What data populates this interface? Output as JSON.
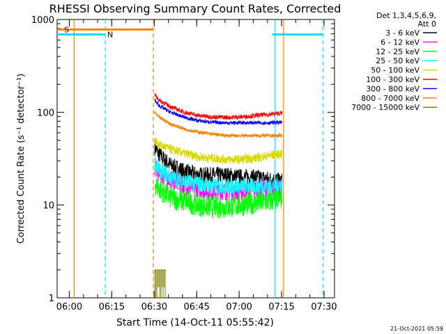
{
  "chart_data": {
    "type": "line",
    "title": "RHESSI Observing Summary Count Rates, Corrected",
    "xlabel": "Start Time (14-Oct-11 05:55:42)",
    "ylabel": "Corrected Count Rate (s⁻¹ detector⁻¹)",
    "x_ticks": [
      "06:00",
      "06:15",
      "06:30",
      "06:45",
      "07:00",
      "07:15",
      "07:30"
    ],
    "x_tick_minutes": [
      4.3,
      19.3,
      34.3,
      49.3,
      64.3,
      79.3,
      94.3
    ],
    "xlim_minutes": [
      0,
      98
    ],
    "y_scale": "log",
    "ylim": [
      1,
      1000
    ],
    "y_ticks": [
      "1",
      "10",
      "100",
      "1000"
    ],
    "grid": false,
    "legend_position": "top-right",
    "legend_header": [
      "Det 1,3,4,5,6,9,",
      "Att 0"
    ],
    "timestamp": "21-Oct-2021 05:59",
    "flags": [
      {
        "label": "S",
        "start": 0,
        "end": 34,
        "level": 780,
        "color": "#ff8000"
      },
      {
        "label": "N",
        "start": 0,
        "end": 17,
        "level": 690,
        "color": "#00e0ff"
      }
    ],
    "flag_end_right": {
      "start": 76,
      "end": 94,
      "level": 690,
      "color": "#00e0ff"
    },
    "vlines_solid": [
      {
        "x": 6,
        "color": "#ff8000"
      },
      {
        "x": 77,
        "color": "#00e0ff"
      },
      {
        "x": 80,
        "color": "#ff8000"
      }
    ],
    "vlines_dashed": [
      {
        "x": 17,
        "color": "#00e0ff"
      },
      {
        "x": 34,
        "color": "#ff8000"
      },
      {
        "x": 94,
        "color": "#00e0ff"
      }
    ],
    "series": [
      {
        "name": "3 - 6 keV",
        "color": "#000000",
        "x": [
          34.5,
          36,
          40,
          45,
          50,
          55,
          60,
          65,
          70,
          75,
          79.5
        ],
        "y": [
          42,
          35,
          27,
          23,
          21,
          21,
          21,
          20,
          20,
          19,
          18
        ]
      },
      {
        "name": "6 - 12 keV",
        "color": "#ff00ff",
        "x": [
          34.5,
          36,
          40,
          45,
          50,
          55,
          60,
          65,
          70,
          75,
          79.5
        ],
        "y": [
          26,
          22,
          19,
          16,
          15,
          14,
          14,
          14,
          15,
          15,
          15
        ]
      },
      {
        "name": "12 - 25 keV",
        "color": "#00ff00",
        "x": [
          34.5,
          36,
          40,
          45,
          50,
          55,
          60,
          65,
          70,
          75,
          79.5
        ],
        "y": [
          17,
          15,
          12,
          11,
          10,
          9.5,
          9.5,
          10,
          10.5,
          11,
          12
        ]
      },
      {
        "name": "25 - 50 keV",
        "color": "#00ffff",
        "x": [
          34.5,
          36,
          40,
          45,
          50,
          55,
          60,
          65,
          70,
          75,
          79.5
        ],
        "y": [
          29,
          24,
          20,
          18,
          17,
          16,
          16,
          16,
          16,
          16,
          17
        ]
      },
      {
        "name": "50 - 100 keV",
        "color": "#d8d800",
        "x": [
          34.5,
          36,
          40,
          45,
          50,
          55,
          60,
          65,
          70,
          75,
          79.5
        ],
        "y": [
          49,
          45,
          40,
          36,
          33,
          32,
          31,
          31,
          32,
          34,
          36
        ]
      },
      {
        "name": "100 - 300 keV",
        "color": "#ff0000",
        "x": [
          34.5,
          36,
          40,
          45,
          50,
          55,
          60,
          65,
          70,
          75,
          79.5
        ],
        "y": [
          155,
          135,
          115,
          100,
          92,
          89,
          88,
          89,
          92,
          95,
          98
        ]
      },
      {
        "name": "300 - 800 keV",
        "color": "#0000ff",
        "x": [
          34.5,
          36,
          40,
          45,
          50,
          55,
          60,
          65,
          70,
          75,
          79.5
        ],
        "y": [
          135,
          118,
          100,
          88,
          81,
          78,
          77,
          77,
          77,
          77,
          78
        ]
      },
      {
        "name": "800 - 7000 keV",
        "color": "#ff8000",
        "x": [
          34.5,
          36,
          40,
          45,
          50,
          55,
          60,
          65,
          70,
          75,
          79.5
        ],
        "y": [
          100,
          88,
          75,
          66,
          61,
          58,
          56,
          56,
          56,
          56,
          56
        ]
      },
      {
        "name": "7000 - 15000 keV",
        "color": "#808000",
        "x": [
          34.5,
          35,
          36,
          37,
          38,
          38.5
        ],
        "y": [
          2,
          2,
          2,
          2,
          2,
          2
        ]
      }
    ]
  }
}
